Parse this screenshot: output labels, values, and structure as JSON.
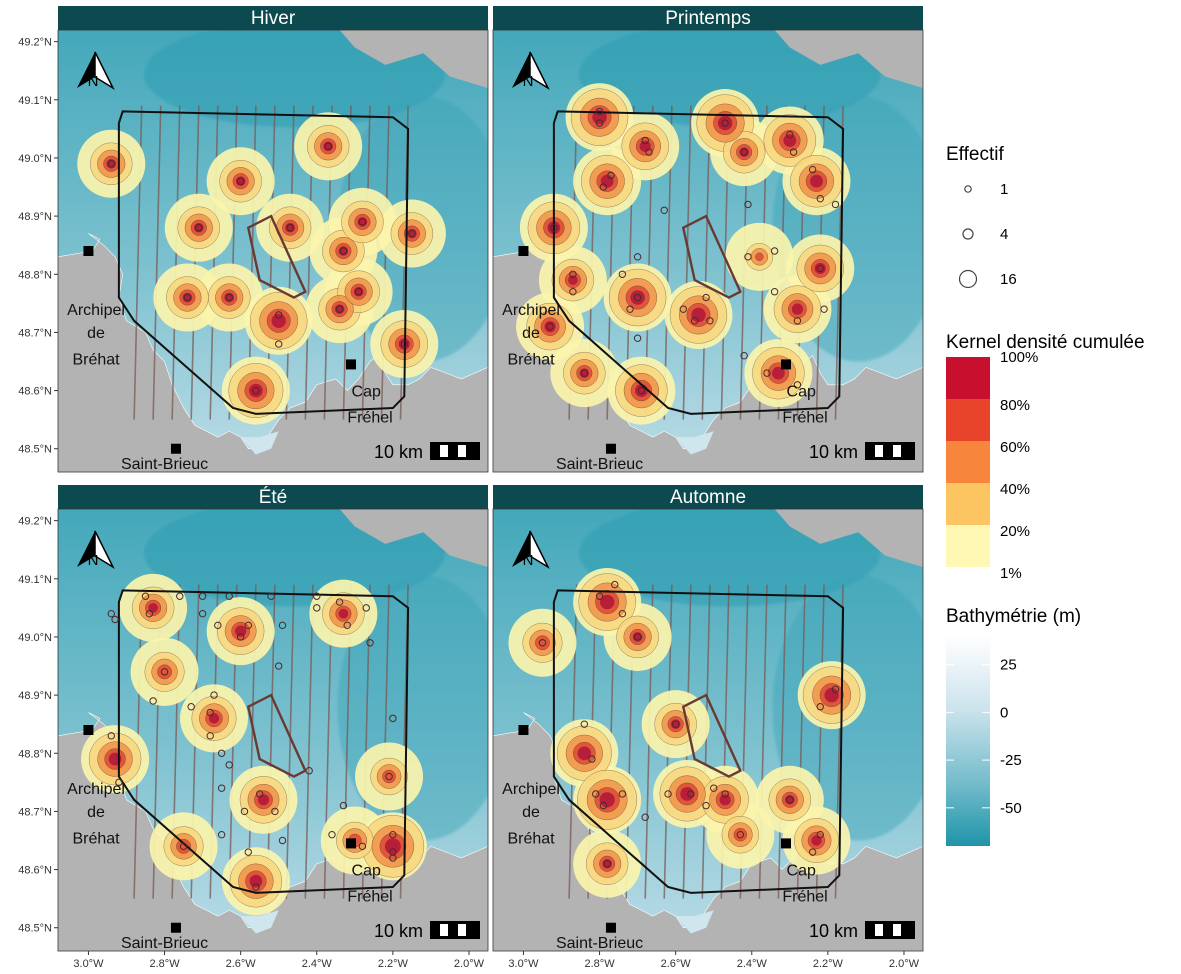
{
  "panels": [
    {
      "id": "hiver",
      "title": "Hiver",
      "points": [
        [
          -2.94,
          48.99
        ],
        [
          -2.6,
          48.96
        ],
        [
          -2.37,
          49.02
        ],
        [
          -2.71,
          48.88
        ],
        [
          -2.47,
          48.88
        ],
        [
          -2.33,
          48.84
        ],
        [
          -2.28,
          48.89
        ],
        [
          -2.15,
          48.87
        ],
        [
          -2.74,
          48.76
        ],
        [
          -2.63,
          48.76
        ],
        [
          -2.5,
          48.73
        ],
        [
          -2.5,
          48.68
        ],
        [
          -2.34,
          48.74
        ],
        [
          -2.29,
          48.77
        ],
        [
          -2.17,
          48.68
        ],
        [
          -2.56,
          48.6
        ]
      ],
      "hotspots": [
        [
          -2.5,
          48.72,
          0.9
        ],
        [
          -2.56,
          48.6,
          0.85
        ],
        [
          -2.94,
          48.99,
          0.6
        ],
        [
          -2.6,
          48.96,
          0.6
        ],
        [
          -2.37,
          49.02,
          0.6
        ],
        [
          -2.71,
          48.88,
          0.6
        ],
        [
          -2.47,
          48.88,
          0.6
        ],
        [
          -2.33,
          48.84,
          0.6
        ],
        [
          -2.28,
          48.89,
          0.6
        ],
        [
          -2.15,
          48.87,
          0.6
        ],
        [
          -2.74,
          48.76,
          0.6
        ],
        [
          -2.63,
          48.76,
          0.6
        ],
        [
          -2.34,
          48.74,
          0.6
        ],
        [
          -2.29,
          48.77,
          0.6
        ],
        [
          -2.17,
          48.68,
          0.7
        ]
      ]
    },
    {
      "id": "printemps",
      "title": "Printemps",
      "points": [
        [
          -2.8,
          49.06
        ],
        [
          -2.8,
          49.08
        ],
        [
          -2.68,
          49.03
        ],
        [
          -2.67,
          49.01
        ],
        [
          -2.47,
          49.06
        ],
        [
          -2.42,
          49.01
        ],
        [
          -2.3,
          49.04
        ],
        [
          -2.29,
          49.01
        ],
        [
          -2.24,
          48.98
        ],
        [
          -2.22,
          48.93
        ],
        [
          -2.18,
          48.92
        ],
        [
          -2.79,
          48.95
        ],
        [
          -2.77,
          48.97
        ],
        [
          -2.92,
          48.88
        ],
        [
          -2.63,
          48.91
        ],
        [
          -2.41,
          48.92
        ],
        [
          -2.87,
          48.8
        ],
        [
          -2.87,
          48.77
        ],
        [
          -2.74,
          48.8
        ],
        [
          -2.7,
          48.83
        ],
        [
          -2.7,
          48.76
        ],
        [
          -2.72,
          48.74
        ],
        [
          -2.7,
          48.69
        ],
        [
          -2.58,
          48.74
        ],
        [
          -2.55,
          48.72
        ],
        [
          -2.51,
          48.72
        ],
        [
          -2.52,
          48.76
        ],
        [
          -2.41,
          48.83
        ],
        [
          -2.34,
          48.84
        ],
        [
          -2.34,
          48.77
        ],
        [
          -2.28,
          48.72
        ],
        [
          -2.22,
          48.81
        ],
        [
          -2.21,
          48.74
        ],
        [
          -2.93,
          48.71
        ],
        [
          -2.84,
          48.63
        ],
        [
          -2.69,
          48.6
        ],
        [
          -2.36,
          48.63
        ],
        [
          -2.28,
          48.61
        ],
        [
          -2.42,
          48.66
        ]
      ],
      "hotspots": [
        [
          -2.8,
          49.07,
          0.9
        ],
        [
          -2.68,
          49.02,
          0.7
        ],
        [
          -2.47,
          49.06,
          0.9
        ],
        [
          -2.42,
          49.01,
          0.6
        ],
        [
          -2.3,
          49.03,
          0.8
        ],
        [
          -2.23,
          48.96,
          0.8
        ],
        [
          -2.78,
          48.96,
          0.8
        ],
        [
          -2.92,
          48.88,
          0.8
        ],
        [
          -2.7,
          48.76,
          0.9
        ],
        [
          -2.87,
          48.79,
          0.6
        ],
        [
          -2.54,
          48.73,
          0.9
        ],
        [
          -2.28,
          48.74,
          0.7
        ],
        [
          -2.22,
          48.81,
          0.7
        ],
        [
          -2.93,
          48.71,
          0.7
        ],
        [
          -2.84,
          48.63,
          0.6
        ],
        [
          -2.69,
          48.6,
          0.8
        ],
        [
          -2.33,
          48.63,
          0.8
        ],
        [
          -2.38,
          48.83,
          0.3
        ]
      ]
    },
    {
      "id": "ete",
      "title": "Été",
      "points": [
        [
          -2.85,
          49.07
        ],
        [
          -2.76,
          49.07
        ],
        [
          -2.7,
          49.07
        ],
        [
          -2.63,
          49.07
        ],
        [
          -2.52,
          49.07
        ],
        [
          -2.4,
          49.07
        ],
        [
          -2.94,
          49.04
        ],
        [
          -2.93,
          49.03
        ],
        [
          -2.84,
          49.04
        ],
        [
          -2.7,
          49.04
        ],
        [
          -2.58,
          49.02
        ],
        [
          -2.6,
          49.0
        ],
        [
          -2.66,
          49.02
        ],
        [
          -2.49,
          49.02
        ],
        [
          -2.5,
          48.95
        ],
        [
          -2.4,
          49.05
        ],
        [
          -2.34,
          49.06
        ],
        [
          -2.32,
          49.02
        ],
        [
          -2.27,
          49.05
        ],
        [
          -2.26,
          48.99
        ],
        [
          -2.8,
          48.94
        ],
        [
          -2.73,
          48.88
        ],
        [
          -2.83,
          48.89
        ],
        [
          -2.67,
          48.9
        ],
        [
          -2.68,
          48.87
        ],
        [
          -2.68,
          48.83
        ],
        [
          -2.65,
          48.8
        ],
        [
          -2.63,
          48.78
        ],
        [
          -2.94,
          48.83
        ],
        [
          -2.92,
          48.75
        ],
        [
          -2.65,
          48.74
        ],
        [
          -2.59,
          48.7
        ],
        [
          -2.55,
          48.73
        ],
        [
          -2.51,
          48.7
        ],
        [
          -2.42,
          48.77
        ],
        [
          -2.33,
          48.71
        ],
        [
          -2.36,
          48.66
        ],
        [
          -2.2,
          48.86
        ],
        [
          -2.21,
          48.76
        ],
        [
          -2.28,
          48.64
        ],
        [
          -2.2,
          48.66
        ],
        [
          -2.2,
          48.63
        ],
        [
          -2.2,
          48.62
        ],
        [
          -2.75,
          48.64
        ],
        [
          -2.58,
          48.63
        ],
        [
          -2.49,
          48.65
        ],
        [
          -2.56,
          48.57
        ],
        [
          -2.65,
          48.66
        ]
      ],
      "hotspots": [
        [
          -2.83,
          49.05,
          0.6
        ],
        [
          -2.6,
          49.01,
          0.7
        ],
        [
          -2.33,
          49.04,
          0.6
        ],
        [
          -2.8,
          48.94,
          0.55
        ],
        [
          -2.67,
          48.86,
          0.65
        ],
        [
          -2.93,
          48.79,
          0.8
        ],
        [
          -2.54,
          48.72,
          0.7
        ],
        [
          -2.2,
          48.64,
          1.0
        ],
        [
          -2.75,
          48.64,
          0.55
        ],
        [
          -2.56,
          48.58,
          0.8
        ],
        [
          -2.3,
          48.65,
          0.5
        ],
        [
          -2.21,
          48.76,
          0.5
        ]
      ]
    },
    {
      "id": "automne",
      "title": "Automne",
      "points": [
        [
          -2.8,
          49.07
        ],
        [
          -2.76,
          49.09
        ],
        [
          -2.74,
          49.04
        ],
        [
          -2.7,
          49.0
        ],
        [
          -2.95,
          48.99
        ],
        [
          -2.84,
          48.85
        ],
        [
          -2.82,
          48.79
        ],
        [
          -2.81,
          48.73
        ],
        [
          -2.79,
          48.71
        ],
        [
          -2.74,
          48.73
        ],
        [
          -2.68,
          48.69
        ],
        [
          -2.6,
          48.85
        ],
        [
          -2.62,
          48.73
        ],
        [
          -2.56,
          48.73
        ],
        [
          -2.52,
          48.71
        ],
        [
          -2.5,
          48.74
        ],
        [
          -2.47,
          48.73
        ],
        [
          -2.43,
          48.66
        ],
        [
          -2.3,
          48.72
        ],
        [
          -2.18,
          48.91
        ],
        [
          -2.22,
          48.88
        ],
        [
          -2.22,
          48.66
        ],
        [
          -2.24,
          48.63
        ],
        [
          -2.78,
          48.61
        ]
      ],
      "hotspots": [
        [
          -2.78,
          49.06,
          0.9
        ],
        [
          -2.7,
          49.0,
          0.6
        ],
        [
          -2.95,
          48.99,
          0.55
        ],
        [
          -2.84,
          48.8,
          0.85
        ],
        [
          -2.78,
          48.72,
          0.95
        ],
        [
          -2.57,
          48.73,
          0.85
        ],
        [
          -2.47,
          48.72,
          0.7
        ],
        [
          -2.6,
          48.85,
          0.6
        ],
        [
          -2.43,
          48.66,
          0.5
        ],
        [
          -2.3,
          48.72,
          0.6
        ],
        [
          -2.19,
          48.9,
          0.9
        ],
        [
          -2.23,
          48.65,
          0.65
        ],
        [
          -2.78,
          48.61,
          0.6
        ]
      ]
    }
  ],
  "map": {
    "lon_range": [
      -3.08,
      -1.95
    ],
    "lat_range": [
      48.46,
      49.22
    ],
    "x_ticks": [
      "3.0°W",
      "2.8°W",
      "2.6°W",
      "2.4°W",
      "2.2°W",
      "2.0°W"
    ],
    "x_tick_values": [
      -3.0,
      -2.8,
      -2.6,
      -2.4,
      -2.2,
      -2.0
    ],
    "y_ticks": [
      "48.5°N",
      "48.6°N",
      "48.7°N",
      "48.8°N",
      "48.9°N",
      "49.0°N",
      "49.1°N",
      "49.2°N"
    ],
    "y_tick_values": [
      48.5,
      48.6,
      48.7,
      48.8,
      48.9,
      49.0,
      49.1,
      49.2
    ],
    "places": {
      "archipel": [
        "Archipel",
        "de",
        "Bréhat"
      ],
      "saint_brieuc": "Saint-Brieuc",
      "cap_frehel": [
        "Cap",
        "Fréhel"
      ]
    },
    "scale_label": "10 km",
    "north_label": "N",
    "strip_color": "#0d4a4f",
    "land_color": "#b3b3b3",
    "sea_deep_color": "#2aa0b4",
    "sea_shallow_color": "#cfe6ee"
  },
  "legend": {
    "effectif": {
      "title": "Effectif",
      "labels": [
        "1",
        "4",
        "16"
      ]
    },
    "kernel": {
      "title": "Kernel densité cumulée",
      "labels": [
        "100%",
        "80%",
        "60%",
        "40%",
        "20%",
        "1%"
      ],
      "colors": [
        "#c8102e",
        "#e8432b",
        "#f7853b",
        "#fcc561",
        "#fef8b4"
      ]
    },
    "bathy": {
      "title": "Bathymétrie (m)",
      "labels": [
        "25",
        "0",
        "-25",
        "-50"
      ],
      "values": [
        25,
        0,
        -25,
        -50
      ],
      "range": [
        -70,
        40
      ],
      "colors": [
        "#ffffff",
        "#cde4ec",
        "#7cc3d1",
        "#2b99ae"
      ]
    }
  }
}
